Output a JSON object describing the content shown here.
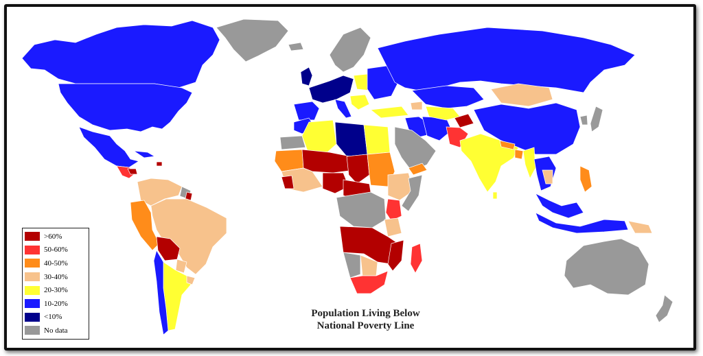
{
  "map": {
    "title_line1": "Population Living Below",
    "title_line2": "National Poverty Line",
    "ocean_color": "#ffffff",
    "border_color": "#ffffff"
  },
  "legend": [
    {
      "label": ">60%",
      "color": "#b30000"
    },
    {
      "label": "50-60%",
      "color": "#ff3333"
    },
    {
      "label": "40-50%",
      "color": "#ff8c1a"
    },
    {
      "label": "30-40%",
      "color": "#f7c28c"
    },
    {
      "label": "20-30%",
      "color": "#ffff33"
    },
    {
      "label": "10-20%",
      "color": "#1a1aff"
    },
    {
      "label": "<10%",
      "color": "#00008b"
    },
    {
      "label": "No data",
      "color": "#999999"
    }
  ]
}
